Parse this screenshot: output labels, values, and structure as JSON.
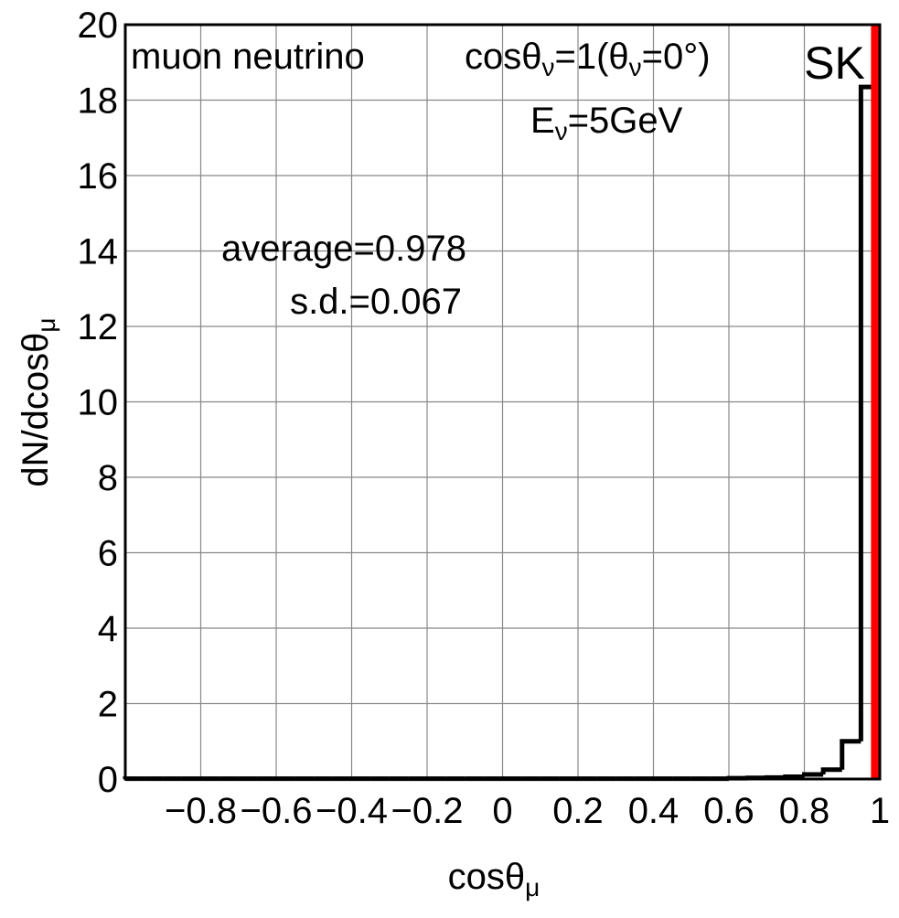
{
  "chart_data": {
    "type": "histogram",
    "xlabel": [
      "cosθ",
      "μ"
    ],
    "ylabel": [
      "dN/dcosθ",
      "μ"
    ],
    "annotations": [
      {
        "parts": [
          "muon neutrino"
        ],
        "anchor": "start"
      },
      {
        "parts": [
          "cosθ",
          "ν",
          "=1(θ",
          "ν",
          "=0°)"
        ],
        "anchor": "start"
      },
      {
        "parts": [
          "E",
          "ν",
          "=5GeV"
        ],
        "anchor": "start"
      },
      {
        "parts": [
          "average=0.978"
        ],
        "anchor": "end"
      },
      {
        "parts": [
          "s.d.=0.067"
        ],
        "anchor": "end"
      }
    ],
    "vline": {
      "x": 0.99,
      "label": "SK",
      "color": "#ff0000"
    },
    "color": "#000000",
    "bins": [
      -1,
      -0.95,
      -0.9,
      -0.85,
      -0.8,
      -0.75,
      -0.7,
      -0.65,
      -0.6,
      -0.55,
      -0.5,
      -0.45,
      -0.4,
      -0.35,
      -0.3,
      -0.25,
      -0.2,
      -0.15,
      -0.1,
      -0.05,
      0,
      0.05,
      0.1,
      0.15,
      0.2,
      0.25,
      0.3,
      0.35,
      0.4,
      0.45,
      0.5,
      0.55,
      0.6,
      0.65,
      0.7,
      0.75,
      0.8,
      0.85,
      0.9,
      0.95,
      1
    ],
    "values": [
      0.01,
      0.01,
      0.01,
      0.01,
      0.01,
      0.01,
      0.01,
      0.01,
      0.01,
      0.01,
      0.01,
      0.01,
      0.01,
      0.01,
      0.01,
      0.01,
      0.01,
      0.01,
      0.01,
      0.01,
      0.01,
      0.01,
      0.01,
      0.01,
      0.01,
      0.01,
      0.01,
      0.01,
      0.01,
      0.01,
      0.01,
      0.01,
      0.02,
      0.03,
      0.04,
      0.06,
      0.12,
      0.25,
      1.0,
      18.35
    ],
    "xlim": [
      -1,
      1
    ],
    "ylim": [
      0,
      20
    ],
    "xticks": [
      {
        "value": -0.8,
        "label": "−0.8"
      },
      {
        "value": -0.6,
        "label": "−0.6"
      },
      {
        "value": -0.4,
        "label": "−0.4"
      },
      {
        "value": -0.2,
        "label": "−0.2"
      },
      0,
      0.2,
      0.4,
      0.6,
      0.8,
      1
    ],
    "yticks": [
      0,
      2,
      4,
      6,
      8,
      10,
      12,
      14,
      16,
      18,
      20
    ],
    "grid": true
  }
}
